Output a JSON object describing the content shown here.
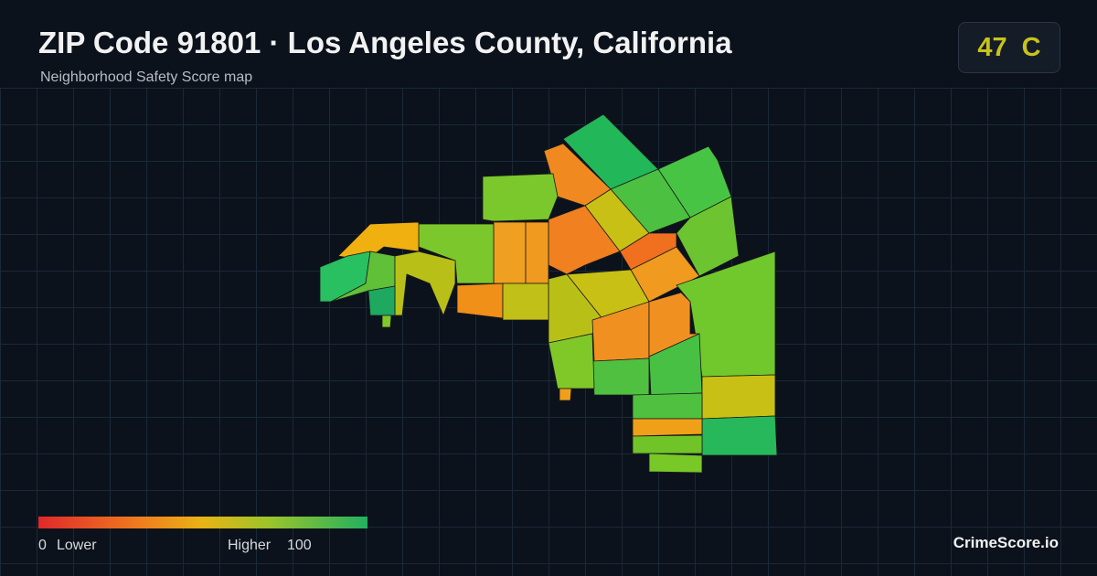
{
  "header": {
    "title": "ZIP Code 91801 · Los Angeles County, California",
    "subtitle": "Neighborhood Safety Score map"
  },
  "score": {
    "value": "47",
    "grade": "C"
  },
  "legend": {
    "min": 0,
    "min_label": "Lower",
    "max_label": "Higher",
    "max": 100
  },
  "brand": "CrimeScore.io"
}
